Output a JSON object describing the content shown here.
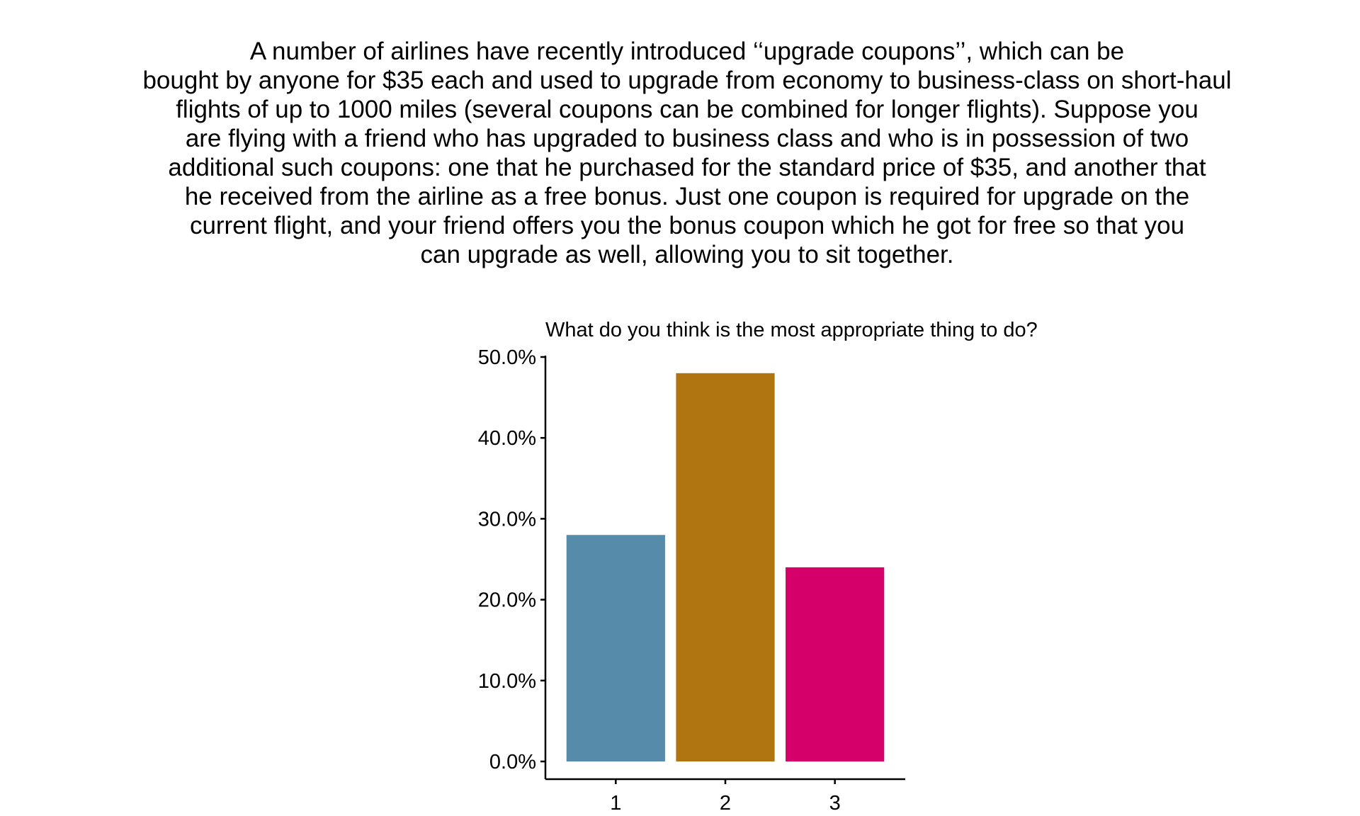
{
  "scenario": {
    "lines": [
      "A number of airlines have recently introduced ‘‘upgrade coupons’’, which can be",
      "bought by anyone for $35 each and used to upgrade from economy to business-class on short-haul",
      "flights of up to 1000 miles (several coupons can be combined for longer flights). Suppose you",
      "are flying with a friend who has upgraded to business class and who is in possession of two",
      "additional such coupons: one that he purchased for the standard price of $35, and another that",
      "he received from the airline as a free bonus. Just one coupon is required for upgrade on the",
      "current flight, and your friend offers you the bonus coupon which he got for free so that you",
      "can upgrade as well, allowing you to sit together."
    ]
  },
  "chart_data": {
    "type": "bar",
    "title": "What do you think is the most appropriate thing to do?",
    "xlabel": "",
    "ylabel": "",
    "categories": [
      "1",
      "2",
      "3"
    ],
    "values": [
      28.0,
      48.0,
      24.0
    ],
    "colors": [
      "#568ba9",
      "#b07510",
      "#d6006a"
    ],
    "ylim": [
      0,
      50
    ],
    "yticks": [
      0,
      10,
      20,
      30,
      40,
      50
    ],
    "ytick_labels": [
      "0.0%",
      "10.0%",
      "20.0%",
      "30.0%",
      "40.0%",
      "50.0%"
    ],
    "grid": false,
    "legend": "none"
  }
}
